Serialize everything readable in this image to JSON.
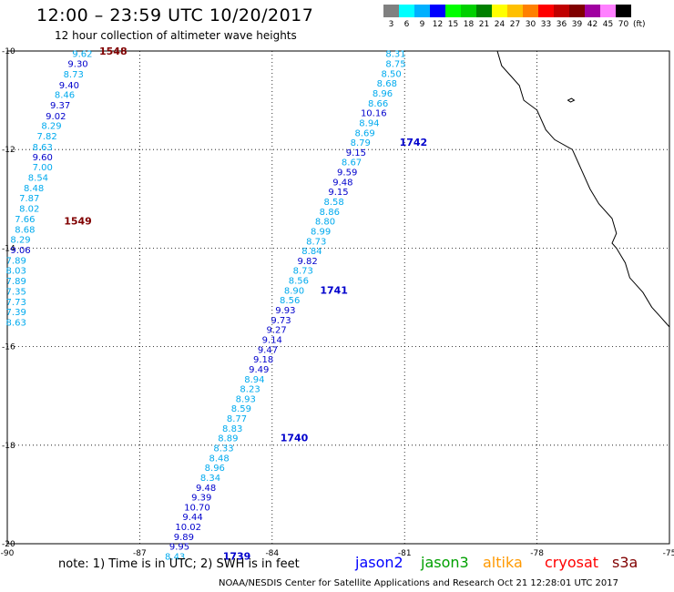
{
  "title": "12:00 – 23:59 UTC 10/20/2017",
  "subtitle": "12 hour collection of altimeter wave heights",
  "colorbar": {
    "labels": [
      "3",
      "6",
      "9",
      "12",
      "15",
      "18",
      "21",
      "24",
      "27",
      "30",
      "33",
      "36",
      "39",
      "42",
      "45",
      "70"
    ],
    "colors": [
      "#808080",
      "#00ffff",
      "#00b0ff",
      "#0000ff",
      "#00ff00",
      "#00d000",
      "#008000",
      "#ffff00",
      "#ffc000",
      "#ff8000",
      "#ff0000",
      "#c00000",
      "#800000",
      "#a000a0",
      "#ff80ff",
      "#000000"
    ],
    "unit": "(ft)"
  },
  "map": {
    "lon_ticks": [
      "-90",
      "-87",
      "-84",
      "-81",
      "-78",
      "-75"
    ],
    "lat_ticks": [
      "-10",
      "-12",
      "-14",
      "-16",
      "-18",
      "-20"
    ],
    "lon_range": [
      -90,
      -75
    ],
    "lat_range": [
      -20,
      -10
    ],
    "grid": "dotted"
  },
  "tracks": [
    {
      "sat": "s3a",
      "color": "#00aaee",
      "path_lonlat": [
        [
          -87.2,
          -10.0
        ],
        [
          -89.8,
          -16.0
        ]
      ],
      "labels": [
        {
          "t": "9.62",
          "lon": -88.3,
          "lat": -10.05,
          "c": "#00aaee"
        },
        {
          "t": "9.30",
          "lon": -88.4,
          "lat": -10.25,
          "c": "#0000cc"
        },
        {
          "t": "8.73",
          "lon": -88.5,
          "lat": -10.46,
          "c": "#00aaee"
        },
        {
          "t": "9.40",
          "lon": -88.6,
          "lat": -10.68,
          "c": "#0000cc"
        },
        {
          "t": "8.46",
          "lon": -88.7,
          "lat": -10.88,
          "c": "#00aaee"
        },
        {
          "t": "9.37",
          "lon": -88.8,
          "lat": -11.09,
          "c": "#0000cc"
        },
        {
          "t": "9.02",
          "lon": -88.9,
          "lat": -11.31,
          "c": "#0000cc"
        },
        {
          "t": "8.29",
          "lon": -89.0,
          "lat": -11.51,
          "c": "#00aaee"
        },
        {
          "t": "7.82",
          "lon": -89.1,
          "lat": -11.72,
          "c": "#00aaee"
        },
        {
          "t": "8.63",
          "lon": -89.2,
          "lat": -11.94,
          "c": "#00aaee"
        },
        {
          "t": "9.60",
          "lon": -89.2,
          "lat": -12.14,
          "c": "#0000cc"
        },
        {
          "t": "7.00",
          "lon": -89.2,
          "lat": -12.35,
          "c": "#00aaee"
        },
        {
          "t": "8.54",
          "lon": -89.3,
          "lat": -12.56,
          "c": "#00aaee"
        },
        {
          "t": "8.48",
          "lon": -89.4,
          "lat": -12.77,
          "c": "#00aaee"
        },
        {
          "t": "7.87",
          "lon": -89.5,
          "lat": -12.98,
          "c": "#00aaee"
        },
        {
          "t": "8.02",
          "lon": -89.5,
          "lat": -13.19,
          "c": "#00aaee"
        },
        {
          "t": "7.66",
          "lon": -89.6,
          "lat": -13.4,
          "c": "#00aaee"
        },
        {
          "t": "8.68",
          "lon": -89.6,
          "lat": -13.61,
          "c": "#00aaee"
        },
        {
          "t": "8.29",
          "lon": -89.7,
          "lat": -13.82,
          "c": "#00aaee"
        },
        {
          "t": "9.06",
          "lon": -89.7,
          "lat": -14.03,
          "c": "#0000cc"
        },
        {
          "t": "7.89",
          "lon": -89.8,
          "lat": -14.24,
          "c": "#00aaee"
        },
        {
          "t": "8.03",
          "lon": -89.8,
          "lat": -14.45,
          "c": "#00aaee"
        },
        {
          "t": "7.89",
          "lon": -89.8,
          "lat": -14.66,
          "c": "#00aaee"
        },
        {
          "t": "7.35",
          "lon": -89.8,
          "lat": -14.87,
          "c": "#00aaee"
        },
        {
          "t": "7.73",
          "lon": -89.8,
          "lat": -15.08,
          "c": "#00aaee"
        },
        {
          "t": "7.39",
          "lon": -89.8,
          "lat": -15.29,
          "c": "#00aaee"
        },
        {
          "t": "8.63",
          "lon": -89.8,
          "lat": -15.5,
          "c": "#00aaee"
        }
      ],
      "times": [
        {
          "t": "1548",
          "lon": -87.6,
          "lat": -10.0,
          "c": "#800000"
        },
        {
          "t": "1549",
          "lon": -88.4,
          "lat": -13.45,
          "c": "#800000"
        }
      ]
    },
    {
      "sat": "jason2",
      "color": "#00aaee",
      "path_lonlat": [
        [
          -80.6,
          -10.0
        ],
        [
          -85.0,
          -20.0
        ]
      ],
      "labels": [
        {
          "t": "8.31",
          "lon": -81.2,
          "lat": -10.05,
          "c": "#00aaee"
        },
        {
          "t": "8.75",
          "lon": -81.2,
          "lat": -10.25,
          "c": "#00aaee"
        },
        {
          "t": "8.50",
          "lon": -81.3,
          "lat": -10.45,
          "c": "#00aaee"
        },
        {
          "t": "8.68",
          "lon": -81.4,
          "lat": -10.65,
          "c": "#00aaee"
        },
        {
          "t": "8.96",
          "lon": -81.5,
          "lat": -10.85,
          "c": "#00aaee"
        },
        {
          "t": "8.66",
          "lon": -81.6,
          "lat": -11.05,
          "c": "#00aaee"
        },
        {
          "t": "10.16",
          "lon": -81.7,
          "lat": -11.25,
          "c": "#0000cc"
        },
        {
          "t": "8.94",
          "lon": -81.8,
          "lat": -11.45,
          "c": "#00aaee"
        },
        {
          "t": "8.69",
          "lon": -81.9,
          "lat": -11.65,
          "c": "#00aaee"
        },
        {
          "t": "8.79",
          "lon": -82.0,
          "lat": -11.85,
          "c": "#00aaee"
        },
        {
          "t": "9.15",
          "lon": -82.1,
          "lat": -12.05,
          "c": "#0000cc"
        },
        {
          "t": "8.67",
          "lon": -82.2,
          "lat": -12.25,
          "c": "#00aaee"
        },
        {
          "t": "9.59",
          "lon": -82.3,
          "lat": -12.45,
          "c": "#0000cc"
        },
        {
          "t": "9.48",
          "lon": -82.4,
          "lat": -12.65,
          "c": "#0000cc"
        },
        {
          "t": "9.15",
          "lon": -82.5,
          "lat": -12.85,
          "c": "#0000cc"
        },
        {
          "t": "8.58",
          "lon": -82.6,
          "lat": -13.05,
          "c": "#00aaee"
        },
        {
          "t": "8.86",
          "lon": -82.7,
          "lat": -13.25,
          "c": "#00aaee"
        },
        {
          "t": "8.80",
          "lon": -82.8,
          "lat": -13.45,
          "c": "#00aaee"
        },
        {
          "t": "8.99",
          "lon": -82.9,
          "lat": -13.65,
          "c": "#00aaee"
        },
        {
          "t": "8.73",
          "lon": -83.0,
          "lat": -13.85,
          "c": "#00aaee"
        },
        {
          "t": "8.84",
          "lon": -83.1,
          "lat": -14.05,
          "c": "#00aaee"
        },
        {
          "t": "9.82",
          "lon": -83.2,
          "lat": -14.25,
          "c": "#0000cc"
        },
        {
          "t": "8.73",
          "lon": -83.3,
          "lat": -14.45,
          "c": "#00aaee"
        },
        {
          "t": "8.56",
          "lon": -83.4,
          "lat": -14.65,
          "c": "#00aaee"
        },
        {
          "t": "8.90",
          "lon": -83.5,
          "lat": -14.85,
          "c": "#00aaee"
        },
        {
          "t": "8.56",
          "lon": -83.6,
          "lat": -15.05,
          "c": "#00aaee"
        },
        {
          "t": "9.93",
          "lon": -83.7,
          "lat": -15.25,
          "c": "#0000cc"
        },
        {
          "t": "9.73",
          "lon": -83.8,
          "lat": -15.45,
          "c": "#0000cc"
        },
        {
          "t": "9.27",
          "lon": -83.9,
          "lat": -15.65,
          "c": "#0000cc"
        },
        {
          "t": "9.14",
          "lon": -84.0,
          "lat": -15.85,
          "c": "#0000cc"
        },
        {
          "t": "9.47",
          "lon": -84.1,
          "lat": -16.05,
          "c": "#0000cc"
        },
        {
          "t": "9.18",
          "lon": -84.2,
          "lat": -16.25,
          "c": "#0000cc"
        },
        {
          "t": "9.49",
          "lon": -84.3,
          "lat": -16.45,
          "c": "#0000cc"
        },
        {
          "t": "8.94",
          "lon": -84.4,
          "lat": -16.65,
          "c": "#00aaee"
        },
        {
          "t": "8.23",
          "lon": -84.5,
          "lat": -16.85,
          "c": "#00aaee"
        },
        {
          "t": "8.93",
          "lon": -84.6,
          "lat": -17.05,
          "c": "#00aaee"
        },
        {
          "t": "8.59",
          "lon": -84.7,
          "lat": -17.25,
          "c": "#00aaee"
        },
        {
          "t": "8.77",
          "lon": -84.8,
          "lat": -17.45,
          "c": "#00aaee"
        },
        {
          "t": "8.83",
          "lon": -84.9,
          "lat": -17.65,
          "c": "#00aaee"
        },
        {
          "t": "8.89",
          "lon": -85.0,
          "lat": -17.85,
          "c": "#00aaee"
        },
        {
          "t": "8.33",
          "lon": -85.1,
          "lat": -18.05,
          "c": "#00aaee"
        },
        {
          "t": "8.48",
          "lon": -85.2,
          "lat": -18.25,
          "c": "#00aaee"
        },
        {
          "t": "8.96",
          "lon": -85.3,
          "lat": -18.45,
          "c": "#00aaee"
        },
        {
          "t": "8.34",
          "lon": -85.4,
          "lat": -18.65,
          "c": "#00aaee"
        },
        {
          "t": "9.48",
          "lon": -85.5,
          "lat": -18.85,
          "c": "#0000cc"
        },
        {
          "t": "9.39",
          "lon": -85.6,
          "lat": -19.05,
          "c": "#0000cc"
        },
        {
          "t": "10.70",
          "lon": -85.7,
          "lat": -19.25,
          "c": "#0000cc"
        },
        {
          "t": "9.44",
          "lon": -85.8,
          "lat": -19.45,
          "c": "#0000cc"
        },
        {
          "t": "10.02",
          "lon": -85.9,
          "lat": -19.65,
          "c": "#0000cc"
        },
        {
          "t": "9.89",
          "lon": -86.0,
          "lat": -19.85,
          "c": "#0000cc"
        },
        {
          "t": "9.95",
          "lon": -86.1,
          "lat": -20.05,
          "c": "#0000cc"
        },
        {
          "t": "8.43",
          "lon": -86.2,
          "lat": -20.25,
          "c": "#00aaee"
        }
      ],
      "times": [
        {
          "t": "1742",
          "lon": -80.8,
          "lat": -11.85,
          "c": "#0000cc"
        },
        {
          "t": "1741",
          "lon": -82.6,
          "lat": -14.85,
          "c": "#0000cc"
        },
        {
          "t": "1740",
          "lon": -83.5,
          "lat": -17.85,
          "c": "#0000cc"
        },
        {
          "t": "1739",
          "lon": -84.8,
          "lat": -20.25,
          "c": "#0000cc"
        }
      ]
    }
  ],
  "note": "note: 1) Time is in UTC; 2) SWH is in feet",
  "legend": [
    {
      "label": "jason2",
      "color": "#0000ff"
    },
    {
      "label": "jason3",
      "color": "#00a000"
    },
    {
      "label": "altika",
      "color": "#ff9900"
    },
    {
      "label": "cryosat",
      "color": "#ff0000"
    },
    {
      "label": "s3a",
      "color": "#800000"
    }
  ],
  "footer": "NOAA/NESDIS Center for Satellite Applications and Research    Oct 21 12:28:01 UTC 2017"
}
